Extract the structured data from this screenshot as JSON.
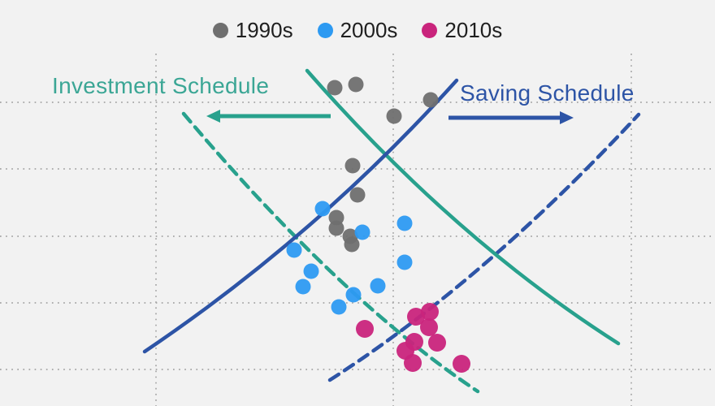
{
  "chart_data": {
    "type": "scatter",
    "background": "#f2f2f2",
    "grid": {
      "color": "#a5a5a5",
      "h_lines_y": [
        126,
        208,
        291,
        373,
        455
      ],
      "v_lines_x": [
        192,
        484,
        777
      ],
      "v_top": 66,
      "v_bottom": 500,
      "h_left": 0,
      "h_right": 880
    },
    "legend": [
      {
        "label": "1990s",
        "color": "#6f6f6f"
      },
      {
        "label": "2000s",
        "color": "#2d9af2"
      },
      {
        "label": "2010s",
        "color": "#c9247c"
      }
    ],
    "series": [
      {
        "name": "1990s",
        "color": "#6f6f6f",
        "radius": 9.5,
        "points": [
          [
            412,
            108
          ],
          [
            438,
            104
          ],
          [
            530,
            123
          ],
          [
            485,
            143
          ],
          [
            434,
            204
          ],
          [
            440,
            240
          ],
          [
            414,
            268
          ],
          [
            414,
            281
          ],
          [
            431,
            291
          ],
          [
            433,
            301
          ]
        ]
      },
      {
        "name": "2000s",
        "color": "#2d9af2",
        "radius": 9.5,
        "points": [
          [
            362,
            308
          ],
          [
            383,
            334
          ],
          [
            373,
            353
          ],
          [
            397,
            257
          ],
          [
            417,
            378
          ],
          [
            435,
            363
          ],
          [
            446,
            286
          ],
          [
            465,
            352
          ],
          [
            498,
            275
          ],
          [
            498,
            323
          ]
        ]
      },
      {
        "name": "2010s",
        "color": "#c9247c",
        "radius": 11,
        "points": [
          [
            449,
            405
          ],
          [
            499,
            432
          ],
          [
            508,
            447
          ],
          [
            510,
            421
          ],
          [
            512,
            390
          ],
          [
            528,
            403
          ],
          [
            529,
            384
          ],
          [
            538,
            422
          ],
          [
            568,
            448
          ]
        ]
      }
    ],
    "curves": [
      {
        "name": "investment-schedule-shifted-curve",
        "schedule": "investment",
        "style": "dashed",
        "color": "#28a18d",
        "width": 4.5,
        "path": [
          [
            226,
            140
          ],
          [
            420,
            370
          ],
          [
            588,
            482
          ]
        ]
      },
      {
        "name": "saving-schedule-shifted-curve",
        "schedule": "saving",
        "style": "dashed",
        "color": "#2d54a6",
        "width": 4.5,
        "path": [
          [
            406,
            468
          ],
          [
            596,
            346
          ],
          [
            786,
            141
          ]
        ]
      },
      {
        "name": "investment-schedule-curve",
        "schedule": "investment",
        "style": "solid",
        "color": "#28a18d",
        "width": 4.5,
        "path": [
          [
            378,
            87
          ],
          [
            560,
            295
          ],
          [
            761,
            423
          ]
        ]
      },
      {
        "name": "saving-schedule-curve",
        "schedule": "saving",
        "style": "solid",
        "color": "#2d54a6",
        "width": 4.5,
        "path": [
          [
            178,
            433
          ],
          [
            390,
            290
          ],
          [
            562,
            99
          ]
        ]
      }
    ],
    "arrows": [
      {
        "name": "investment-shift-arrow",
        "color": "#28a18d",
        "from": [
          407,
          143
        ],
        "to": [
          254,
          143
        ]
      },
      {
        "name": "saving-shift-arrow",
        "color": "#2d54a6",
        "from": [
          552,
          145
        ],
        "to": [
          706,
          145
        ]
      }
    ],
    "annotations": [
      {
        "text": "Investment Schedule",
        "color": "#3ba695"
      },
      {
        "text": "Saving Schedule",
        "color": "#2d54a6"
      }
    ]
  }
}
